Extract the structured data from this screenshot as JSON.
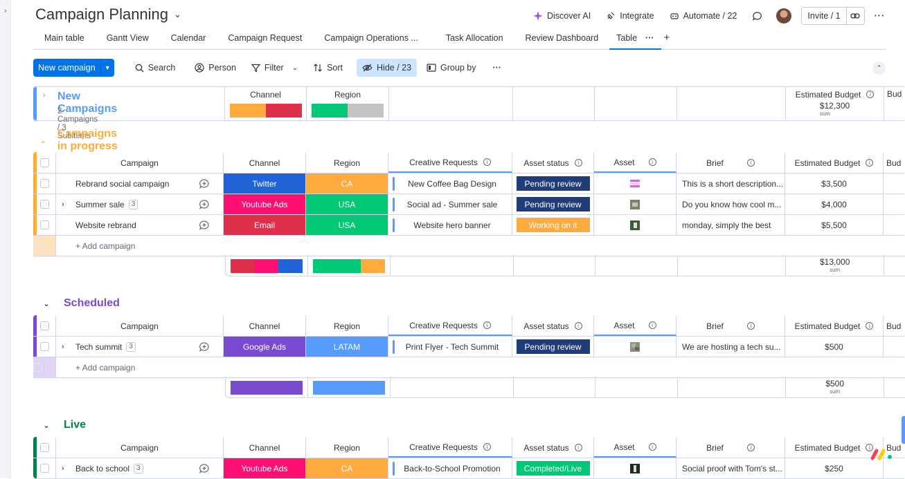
{
  "board": {
    "title": "Campaign Planning"
  },
  "topbar": {
    "discover_ai": "Discover AI",
    "integrate": "Integrate",
    "automate": "Automate / 22",
    "invite": "Invite / 1"
  },
  "tabs": [
    "Main table",
    "Gantt View",
    "Calendar",
    "Campaign Request",
    "Campaign Operations ...",
    "Task Allocation",
    "Review Dashboard",
    "Table"
  ],
  "toolbar": {
    "new_campaign": "New campaign",
    "search": "Search",
    "person": "Person",
    "filter": "Filter",
    "sort": "Sort",
    "hide": "Hide / 23",
    "group_by": "Group by"
  },
  "columns": {
    "campaign": "Campaign",
    "channel": "Channel",
    "region": "Region",
    "creative_requests": "Creative Requests",
    "asset_status": "Asset status",
    "asset": "Asset",
    "brief": "Brief",
    "estimated_budget": "Estimated Budget",
    "budget_cut": "Bud"
  },
  "common": {
    "add_campaign": "+ Add campaign",
    "sum": "sum"
  },
  "colors": {
    "twitter": "#1f63d6",
    "youtube": "#ff0f71",
    "email": "#df2f4a",
    "google_ads": "#784bd1",
    "ca": "#fdab3d",
    "usa": "#00c875",
    "latam": "#579bfc",
    "gray": "#c4c4c4",
    "pending_review": "#1f3d7a",
    "working_on_it": "#fdab3d",
    "completed": "#00c875",
    "new_group": "#579bfc",
    "progress_group": "#fdab3d",
    "scheduled_group": "#784bd1",
    "live_group": "#037f4c"
  },
  "groups": {
    "new": {
      "name": "New Campaigns",
      "meta": "2 Campaigns / 3 Subitems",
      "budget_sum": "$12,300",
      "channel_shares": [
        0.55,
        0.45
      ],
      "region_shares": [
        0.5,
        0.5
      ]
    },
    "progress": {
      "name": "Campaigns in progress",
      "rows": [
        {
          "name": "Rebrand social campaign",
          "subitems": "",
          "channel": "Twitter",
          "region": "CA",
          "creative": "New Coffee Bag Design",
          "status": "Pending review",
          "brief": "This is a short description...",
          "budget": "$3,500"
        },
        {
          "name": "Summer sale",
          "subitems": "3",
          "channel": "Youtube Ads",
          "region": "USA",
          "creative": "Social ad - Summer sale",
          "status": "Pending review",
          "brief": "Do you know how cool m...",
          "budget": "$4,000"
        },
        {
          "name": "Website rebrand",
          "subitems": "",
          "channel": "Email",
          "region": "USA",
          "creative": "Website hero banner",
          "status": "Working on it",
          "brief": "monday, simply the best",
          "budget": "$5,500"
        }
      ],
      "budget_sum": "$13,000"
    },
    "scheduled": {
      "name": "Scheduled",
      "rows": [
        {
          "name": "Tech summit",
          "subitems": "3",
          "channel": "Google Ads",
          "region": "LATAM",
          "creative": "Print Flyer - Tech Summit",
          "status": "Pending review",
          "brief": "We are hosting a tech su...",
          "budget": "$500"
        }
      ],
      "budget_sum": "$500"
    },
    "live": {
      "name": "Live",
      "rows": [
        {
          "name": "Back to school",
          "subitems": "3",
          "channel": "Youtube Ads",
          "region": "CA",
          "creative": "Back-to-School Promotion",
          "status": "Completed/Live",
          "brief": "Social proof with Tom's st...",
          "budget": "$250"
        }
      ]
    }
  }
}
